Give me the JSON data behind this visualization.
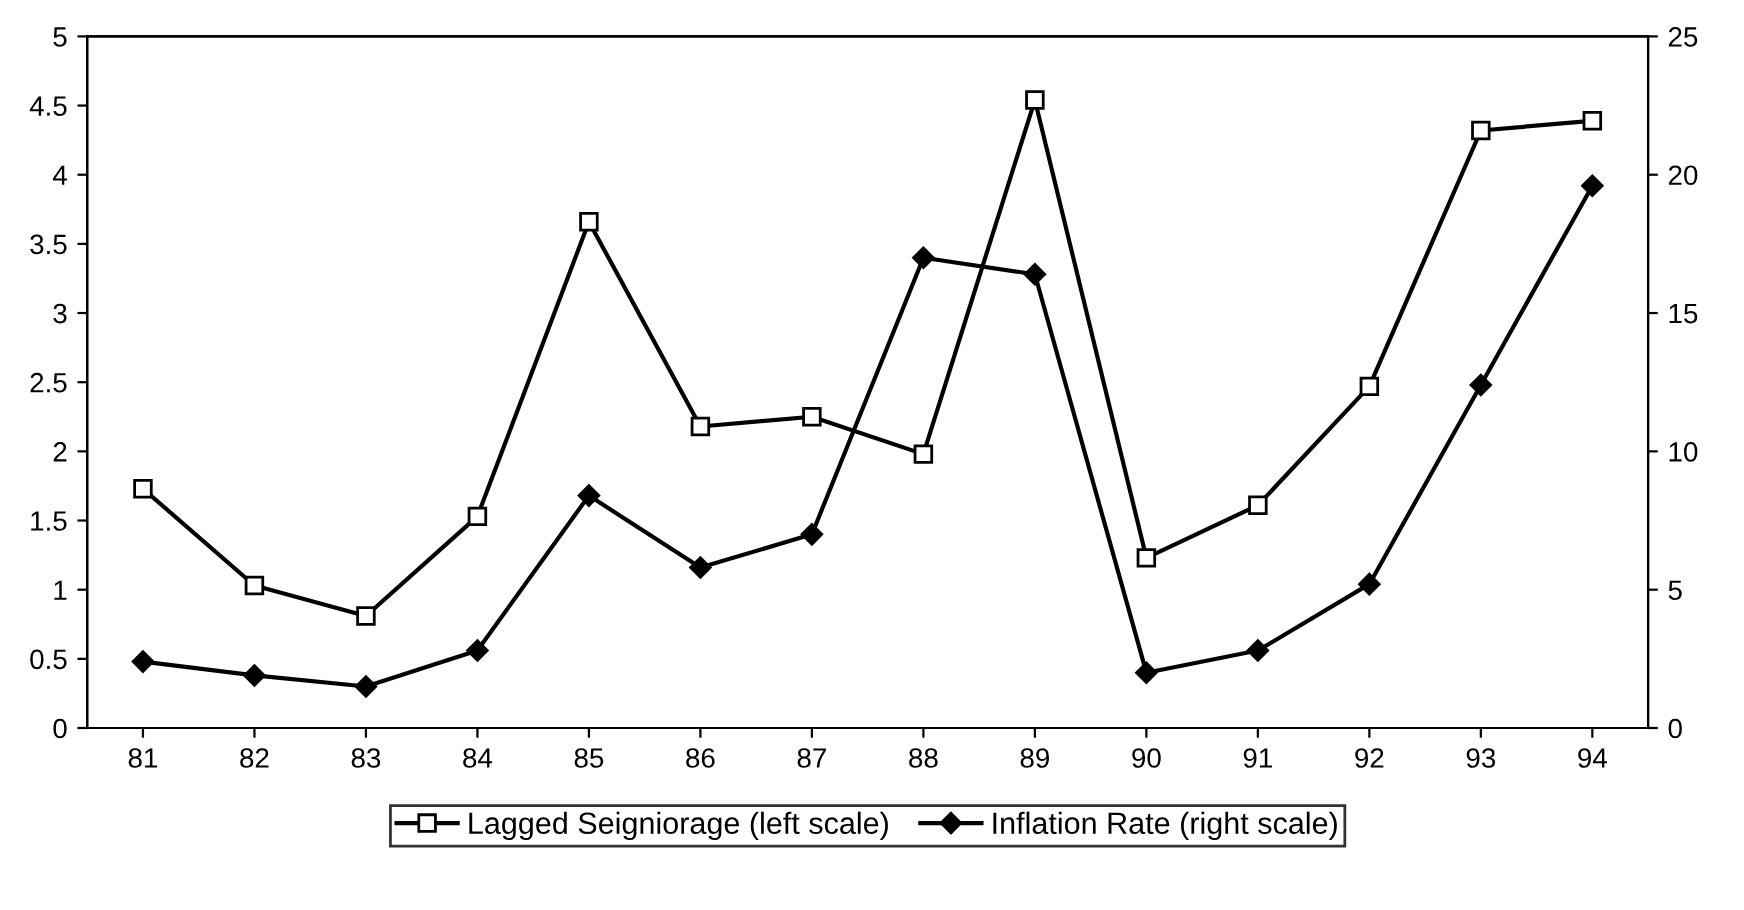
{
  "chart_data": {
    "type": "line",
    "categories": [
      "81",
      "82",
      "83",
      "84",
      "85",
      "86",
      "87",
      "88",
      "89",
      "90",
      "91",
      "92",
      "93",
      "94"
    ],
    "series": [
      {
        "name": "Lagged Seigniorage (left scale)",
        "color": "#000000",
        "marker": "square",
        "values": [
          1.73,
          1.03,
          0.81,
          1.53,
          3.66,
          2.18,
          2.25,
          1.98,
          4.54,
          1.23,
          1.61,
          2.47,
          4.32,
          4.39
        ]
      },
      {
        "name": "Inflation Rate (right scale)",
        "color": "#000000",
        "marker": "diamond",
        "axis": "y2",
        "values": [
          2.4,
          1.9,
          1.5,
          2.8,
          8.4,
          5.8,
          7.0,
          17.0,
          16.4,
          2.0,
          2.8,
          5.2,
          12.4,
          19.6
        ]
      }
    ],
    "ylim": [
      0,
      5
    ],
    "yticks": [
      0,
      0.5,
      1,
      1.5,
      2,
      2.5,
      3,
      3.5,
      4,
      4.5,
      5
    ],
    "y2lim": [
      0,
      25
    ],
    "y2ticks": [
      0,
      5,
      10,
      15,
      20,
      25
    ],
    "grid": false,
    "legend": "bottom",
    "line_style": "solid"
  }
}
